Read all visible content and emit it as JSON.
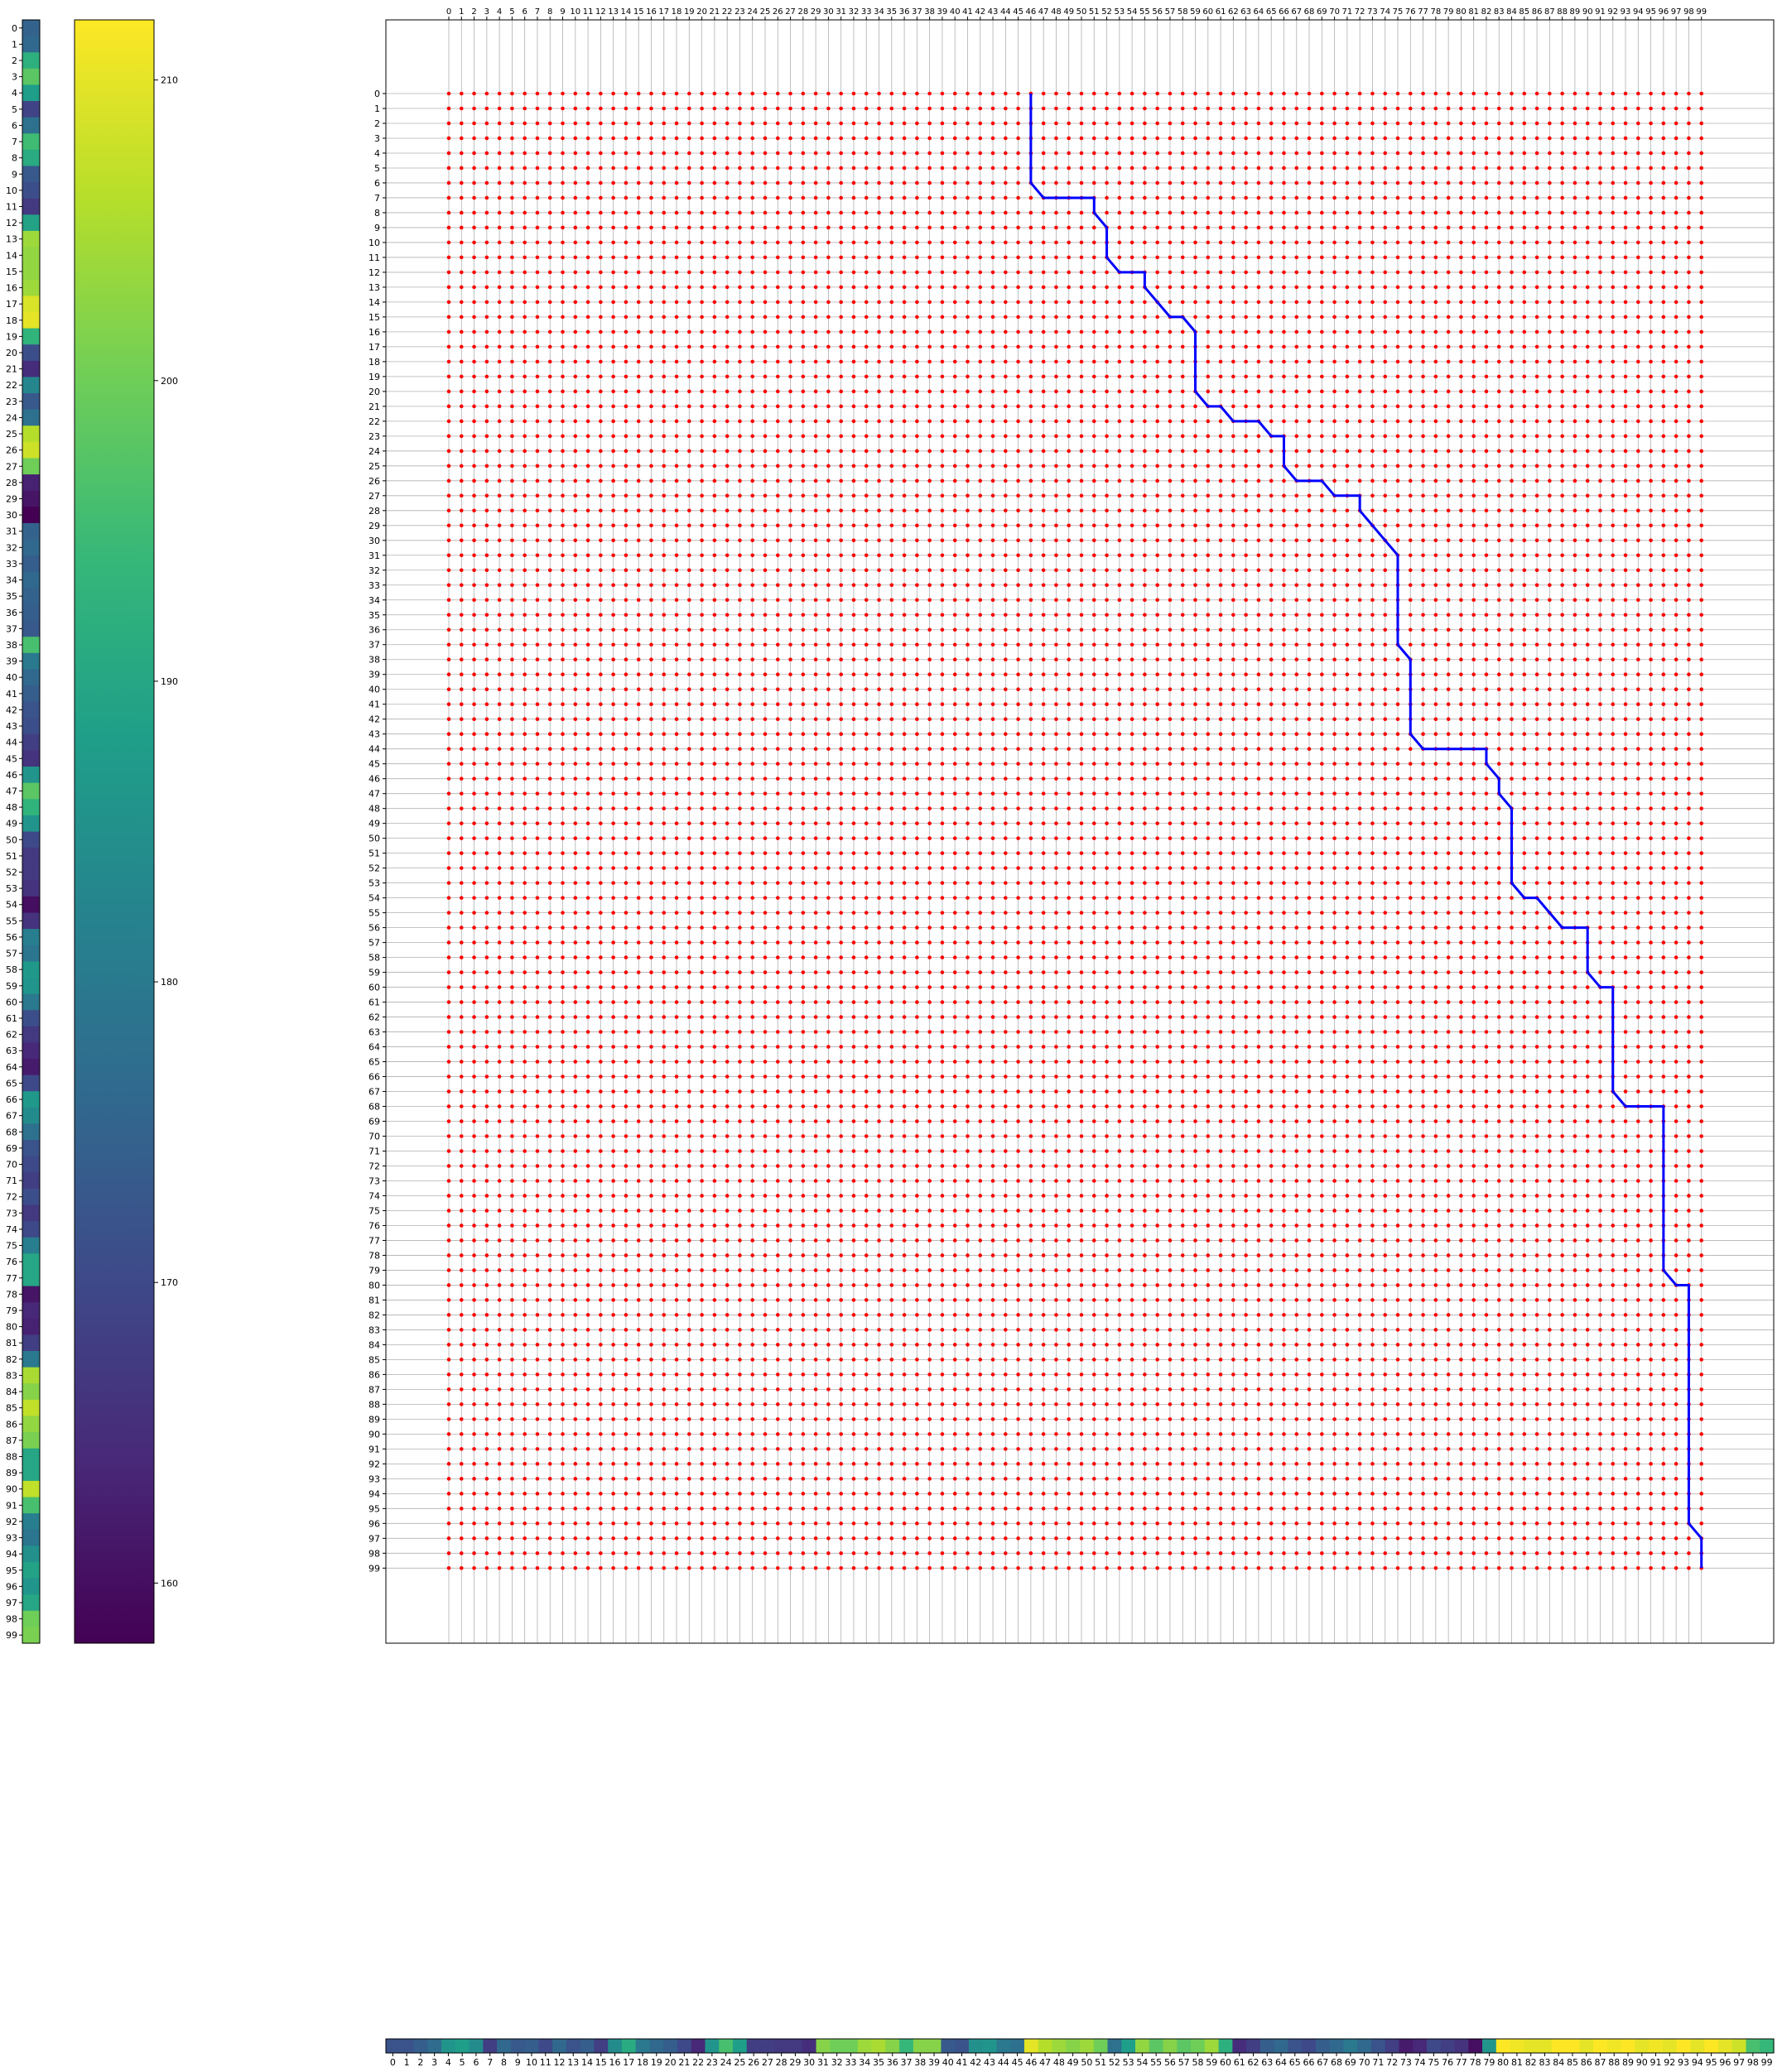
{
  "chart_data": [
    {
      "type": "heatmap",
      "name": "left-sequence-strip",
      "orientation": "vertical",
      "labels": [
        0,
        1,
        2,
        3,
        4,
        5,
        6,
        7,
        8,
        9,
        10,
        11,
        12,
        13,
        14,
        15,
        16,
        17,
        18,
        19,
        20,
        21,
        22,
        23,
        24,
        25,
        26,
        27,
        28,
        29,
        30,
        31,
        32,
        33,
        34,
        35,
        36,
        37,
        38,
        39,
        40,
        41,
        42,
        43,
        44,
        45,
        46,
        47,
        48,
        49,
        50,
        51,
        52,
        53,
        54,
        55,
        56,
        57,
        58,
        59,
        60,
        61,
        62,
        63,
        64,
        65,
        66,
        67,
        68,
        69,
        70,
        71,
        72,
        73,
        74,
        75,
        76,
        77,
        78,
        79,
        80,
        81,
        82,
        83,
        84,
        85,
        86,
        87,
        88,
        89,
        90,
        91,
        92,
        93,
        94,
        95,
        96,
        97,
        98,
        99
      ],
      "values": [
        175,
        176,
        192,
        198,
        188,
        169,
        178,
        195,
        191,
        173,
        171,
        167,
        189,
        204,
        203,
        203,
        204,
        209,
        210,
        193,
        171,
        165,
        183,
        173,
        178,
        206,
        208,
        200,
        163,
        161,
        158,
        175,
        176,
        174,
        176,
        175,
        174,
        173,
        196,
        180,
        176,
        174,
        172,
        171,
        168,
        166,
        186,
        198,
        193,
        186,
        170,
        167,
        167,
        166,
        160,
        166,
        181,
        179,
        187,
        186,
        180,
        171,
        167,
        164,
        162,
        170,
        187,
        184,
        178,
        172,
        170,
        168,
        171,
        167,
        170,
        181,
        190,
        190,
        161,
        164,
        163,
        168,
        180,
        205,
        202,
        207,
        203,
        201,
        190,
        190,
        207,
        196,
        181,
        179,
        185,
        189,
        186,
        190,
        200,
        201
      ]
    },
    {
      "type": "colorbar",
      "colormap": "viridis",
      "range": [
        158,
        212
      ],
      "ticks": [
        160,
        170,
        180,
        190,
        200,
        210
      ]
    },
    {
      "type": "scatter",
      "name": "alignment-grid",
      "x_ticks": [
        0,
        1,
        2,
        3,
        4,
        5,
        6,
        7,
        8,
        9,
        10,
        11,
        12,
        13,
        14,
        15,
        16,
        17,
        18,
        19,
        20,
        21,
        22,
        23,
        24,
        25,
        26,
        27,
        28,
        29,
        30,
        31,
        32,
        33,
        34,
        35,
        36,
        37,
        38,
        39,
        40,
        41,
        42,
        43,
        44,
        45,
        46,
        47,
        48,
        49,
        50,
        51,
        52,
        53,
        54,
        55,
        56,
        57,
        58,
        59,
        60,
        61,
        62,
        63,
        64,
        65,
        66,
        67,
        68,
        69,
        70,
        71,
        72,
        73,
        74,
        75,
        76,
        77,
        78,
        79,
        80,
        81,
        82,
        83,
        84,
        85,
        86,
        87,
        88,
        89,
        90,
        91,
        92,
        93,
        94,
        95,
        96,
        97,
        98,
        99
      ],
      "y_ticks": [
        0,
        1,
        2,
        3,
        4,
        5,
        6,
        7,
        8,
        9,
        10,
        11,
        12,
        13,
        14,
        15,
        16,
        17,
        18,
        19,
        20,
        21,
        22,
        23,
        24,
        25,
        26,
        27,
        28,
        29,
        30,
        31,
        32,
        33,
        34,
        35,
        36,
        37,
        38,
        39,
        40,
        41,
        42,
        43,
        44,
        45,
        46,
        47,
        48,
        49,
        50,
        51,
        52,
        53,
        54,
        55,
        56,
        57,
        58,
        59,
        60,
        61,
        62,
        63,
        64,
        65,
        66,
        67,
        68,
        69,
        70,
        71,
        72,
        73,
        74,
        75,
        76,
        77,
        78,
        79,
        80,
        81,
        82,
        83,
        84,
        85,
        86,
        87,
        88,
        89,
        90,
        91,
        92,
        93,
        94,
        95,
        96,
        97,
        98,
        99
      ],
      "points": "all (x, y) pairs for x, y in 0..99",
      "point_color": "#ff0000",
      "path_color": "#0000ff",
      "path": [
        [
          46,
          0
        ],
        [
          46,
          1
        ],
        [
          46,
          2
        ],
        [
          46,
          3
        ],
        [
          46,
          4
        ],
        [
          46,
          5
        ],
        [
          46,
          6
        ],
        [
          47,
          7
        ],
        [
          48,
          7
        ],
        [
          49,
          7
        ],
        [
          50,
          7
        ],
        [
          51,
          7
        ],
        [
          51,
          8
        ],
        [
          52,
          9
        ],
        [
          52,
          10
        ],
        [
          52,
          11
        ],
        [
          53,
          12
        ],
        [
          54,
          12
        ],
        [
          55,
          12
        ],
        [
          55,
          13
        ],
        [
          56,
          14
        ],
        [
          57,
          15
        ],
        [
          58,
          15
        ],
        [
          59,
          16
        ],
        [
          59,
          17
        ],
        [
          59,
          18
        ],
        [
          59,
          19
        ],
        [
          59,
          20
        ],
        [
          60,
          21
        ],
        [
          61,
          21
        ],
        [
          62,
          22
        ],
        [
          63,
          22
        ],
        [
          64,
          22
        ],
        [
          65,
          23
        ],
        [
          66,
          23
        ],
        [
          66,
          24
        ],
        [
          66,
          25
        ],
        [
          67,
          26
        ],
        [
          68,
          26
        ],
        [
          69,
          26
        ],
        [
          70,
          27
        ],
        [
          71,
          27
        ],
        [
          72,
          27
        ],
        [
          72,
          28
        ],
        [
          73,
          29
        ],
        [
          74,
          30
        ],
        [
          75,
          31
        ],
        [
          75,
          32
        ],
        [
          75,
          33
        ],
        [
          75,
          34
        ],
        [
          75,
          35
        ],
        [
          75,
          36
        ],
        [
          75,
          37
        ],
        [
          76,
          38
        ],
        [
          76,
          39
        ],
        [
          76,
          40
        ],
        [
          76,
          41
        ],
        [
          76,
          42
        ],
        [
          76,
          43
        ],
        [
          77,
          44
        ],
        [
          78,
          44
        ],
        [
          79,
          44
        ],
        [
          80,
          44
        ],
        [
          81,
          44
        ],
        [
          82,
          44
        ],
        [
          82,
          45
        ],
        [
          83,
          46
        ],
        [
          83,
          47
        ],
        [
          84,
          48
        ],
        [
          84,
          49
        ],
        [
          84,
          50
        ],
        [
          84,
          51
        ],
        [
          84,
          52
        ],
        [
          84,
          53
        ],
        [
          85,
          54
        ],
        [
          86,
          54
        ],
        [
          87,
          55
        ],
        [
          88,
          56
        ],
        [
          89,
          56
        ],
        [
          90,
          56
        ],
        [
          90,
          57
        ],
        [
          90,
          58
        ],
        [
          90,
          59
        ],
        [
          91,
          60
        ],
        [
          92,
          60
        ],
        [
          92,
          61
        ],
        [
          92,
          62
        ],
        [
          92,
          63
        ],
        [
          92,
          64
        ],
        [
          92,
          65
        ],
        [
          92,
          66
        ],
        [
          92,
          67
        ],
        [
          93,
          68
        ],
        [
          94,
          68
        ],
        [
          95,
          68
        ],
        [
          96,
          68
        ],
        [
          96,
          69
        ],
        [
          96,
          70
        ],
        [
          96,
          71
        ],
        [
          96,
          72
        ],
        [
          96,
          73
        ],
        [
          96,
          74
        ],
        [
          96,
          75
        ],
        [
          96,
          76
        ],
        [
          96,
          77
        ],
        [
          96,
          78
        ],
        [
          96,
          79
        ],
        [
          97,
          80
        ],
        [
          98,
          80
        ],
        [
          98,
          81
        ],
        [
          98,
          82
        ],
        [
          98,
          83
        ],
        [
          98,
          84
        ],
        [
          98,
          85
        ],
        [
          98,
          86
        ],
        [
          98,
          87
        ],
        [
          98,
          88
        ],
        [
          98,
          89
        ],
        [
          98,
          90
        ],
        [
          98,
          91
        ],
        [
          98,
          92
        ],
        [
          98,
          93
        ],
        [
          98,
          94
        ],
        [
          98,
          95
        ],
        [
          98,
          96
        ],
        [
          99,
          97
        ],
        [
          99,
          98
        ],
        [
          99,
          99
        ]
      ]
    },
    {
      "type": "heatmap",
      "name": "bottom-sequence-strip",
      "orientation": "horizontal",
      "labels": [
        0,
        1,
        2,
        3,
        4,
        5,
        6,
        7,
        8,
        9,
        10,
        11,
        12,
        13,
        14,
        15,
        16,
        17,
        18,
        19,
        20,
        21,
        22,
        23,
        24,
        25,
        26,
        27,
        28,
        29,
        30,
        31,
        32,
        33,
        34,
        35,
        36,
        37,
        38,
        39,
        40,
        41,
        42,
        43,
        44,
        45,
        46,
        47,
        48,
        49,
        50,
        51,
        52,
        53,
        54,
        55,
        56,
        57,
        58,
        59,
        60,
        61,
        62,
        63,
        64,
        65,
        66,
        67,
        68,
        69,
        70,
        71,
        72,
        73,
        74,
        75,
        76,
        77,
        78,
        79,
        80,
        81,
        82,
        83,
        84,
        85,
        86,
        87,
        88,
        89,
        90,
        91,
        92,
        93,
        94,
        95,
        96,
        97,
        98,
        99
      ],
      "values": [
        172,
        172,
        174,
        177,
        186,
        188,
        184,
        168,
        176,
        173,
        174,
        170,
        176,
        172,
        174,
        168,
        184,
        191,
        180,
        176,
        174,
        170,
        164,
        186,
        196,
        188,
        168,
        168,
        167,
        167,
        165,
        202,
        200,
        200,
        204,
        205,
        202,
        194,
        202,
        202,
        173,
        172,
        185,
        186,
        180,
        178,
        210,
        206,
        204,
        202,
        204,
        200,
        178,
        188,
        203,
        198,
        202,
        198,
        200,
        204,
        192,
        165,
        168,
        174,
        176,
        172,
        170,
        174,
        176,
        180,
        176,
        172,
        168,
        162,
        164,
        170,
        168,
        166,
        160,
        186,
        212,
        211,
        210,
        210,
        212,
        212,
        210,
        212,
        211,
        212,
        210,
        211,
        210,
        212,
        210,
        212,
        210,
        208,
        196,
        194
      ]
    }
  ]
}
